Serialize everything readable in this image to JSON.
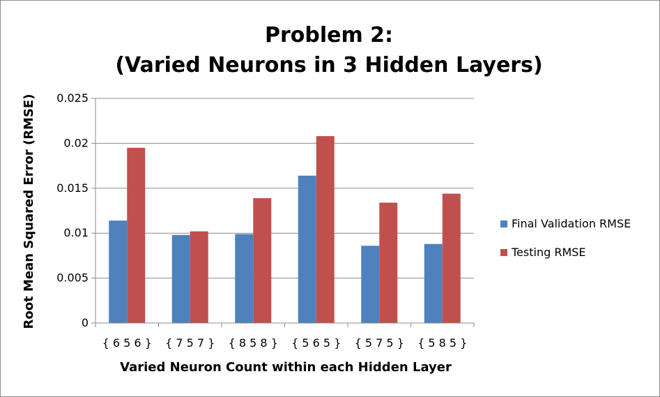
{
  "chart_data": {
    "type": "bar",
    "title_line1": "Problem 2:",
    "title_line2": "(Varied Neurons in 3 Hidden Layers)",
    "xlabel": "Varied Neuron Count within each Hidden Layer",
    "ylabel": "Root Mean Squared Error (RMSE)",
    "categories": [
      "{ 6 5 6 }",
      "{ 7 5 7 }",
      "{ 8 5 8 }",
      "{ 5 6 5 }",
      "{ 5 7 5 }",
      "{ 5 8 5 }"
    ],
    "series": [
      {
        "name": "Final Validation RMSE",
        "color": "#4f81bd",
        "values": [
          0.0114,
          0.0098,
          0.0099,
          0.0164,
          0.0086,
          0.0088
        ]
      },
      {
        "name": "Testing RMSE",
        "color": "#c0504d",
        "values": [
          0.0195,
          0.0102,
          0.0139,
          0.0208,
          0.0134,
          0.0144
        ]
      }
    ],
    "ylim": [
      0,
      0.025
    ],
    "yticks": [
      "0",
      "0.005",
      "0.01",
      "0.015",
      "0.02",
      "0.025"
    ],
    "grid": true,
    "legend_position": "right"
  }
}
